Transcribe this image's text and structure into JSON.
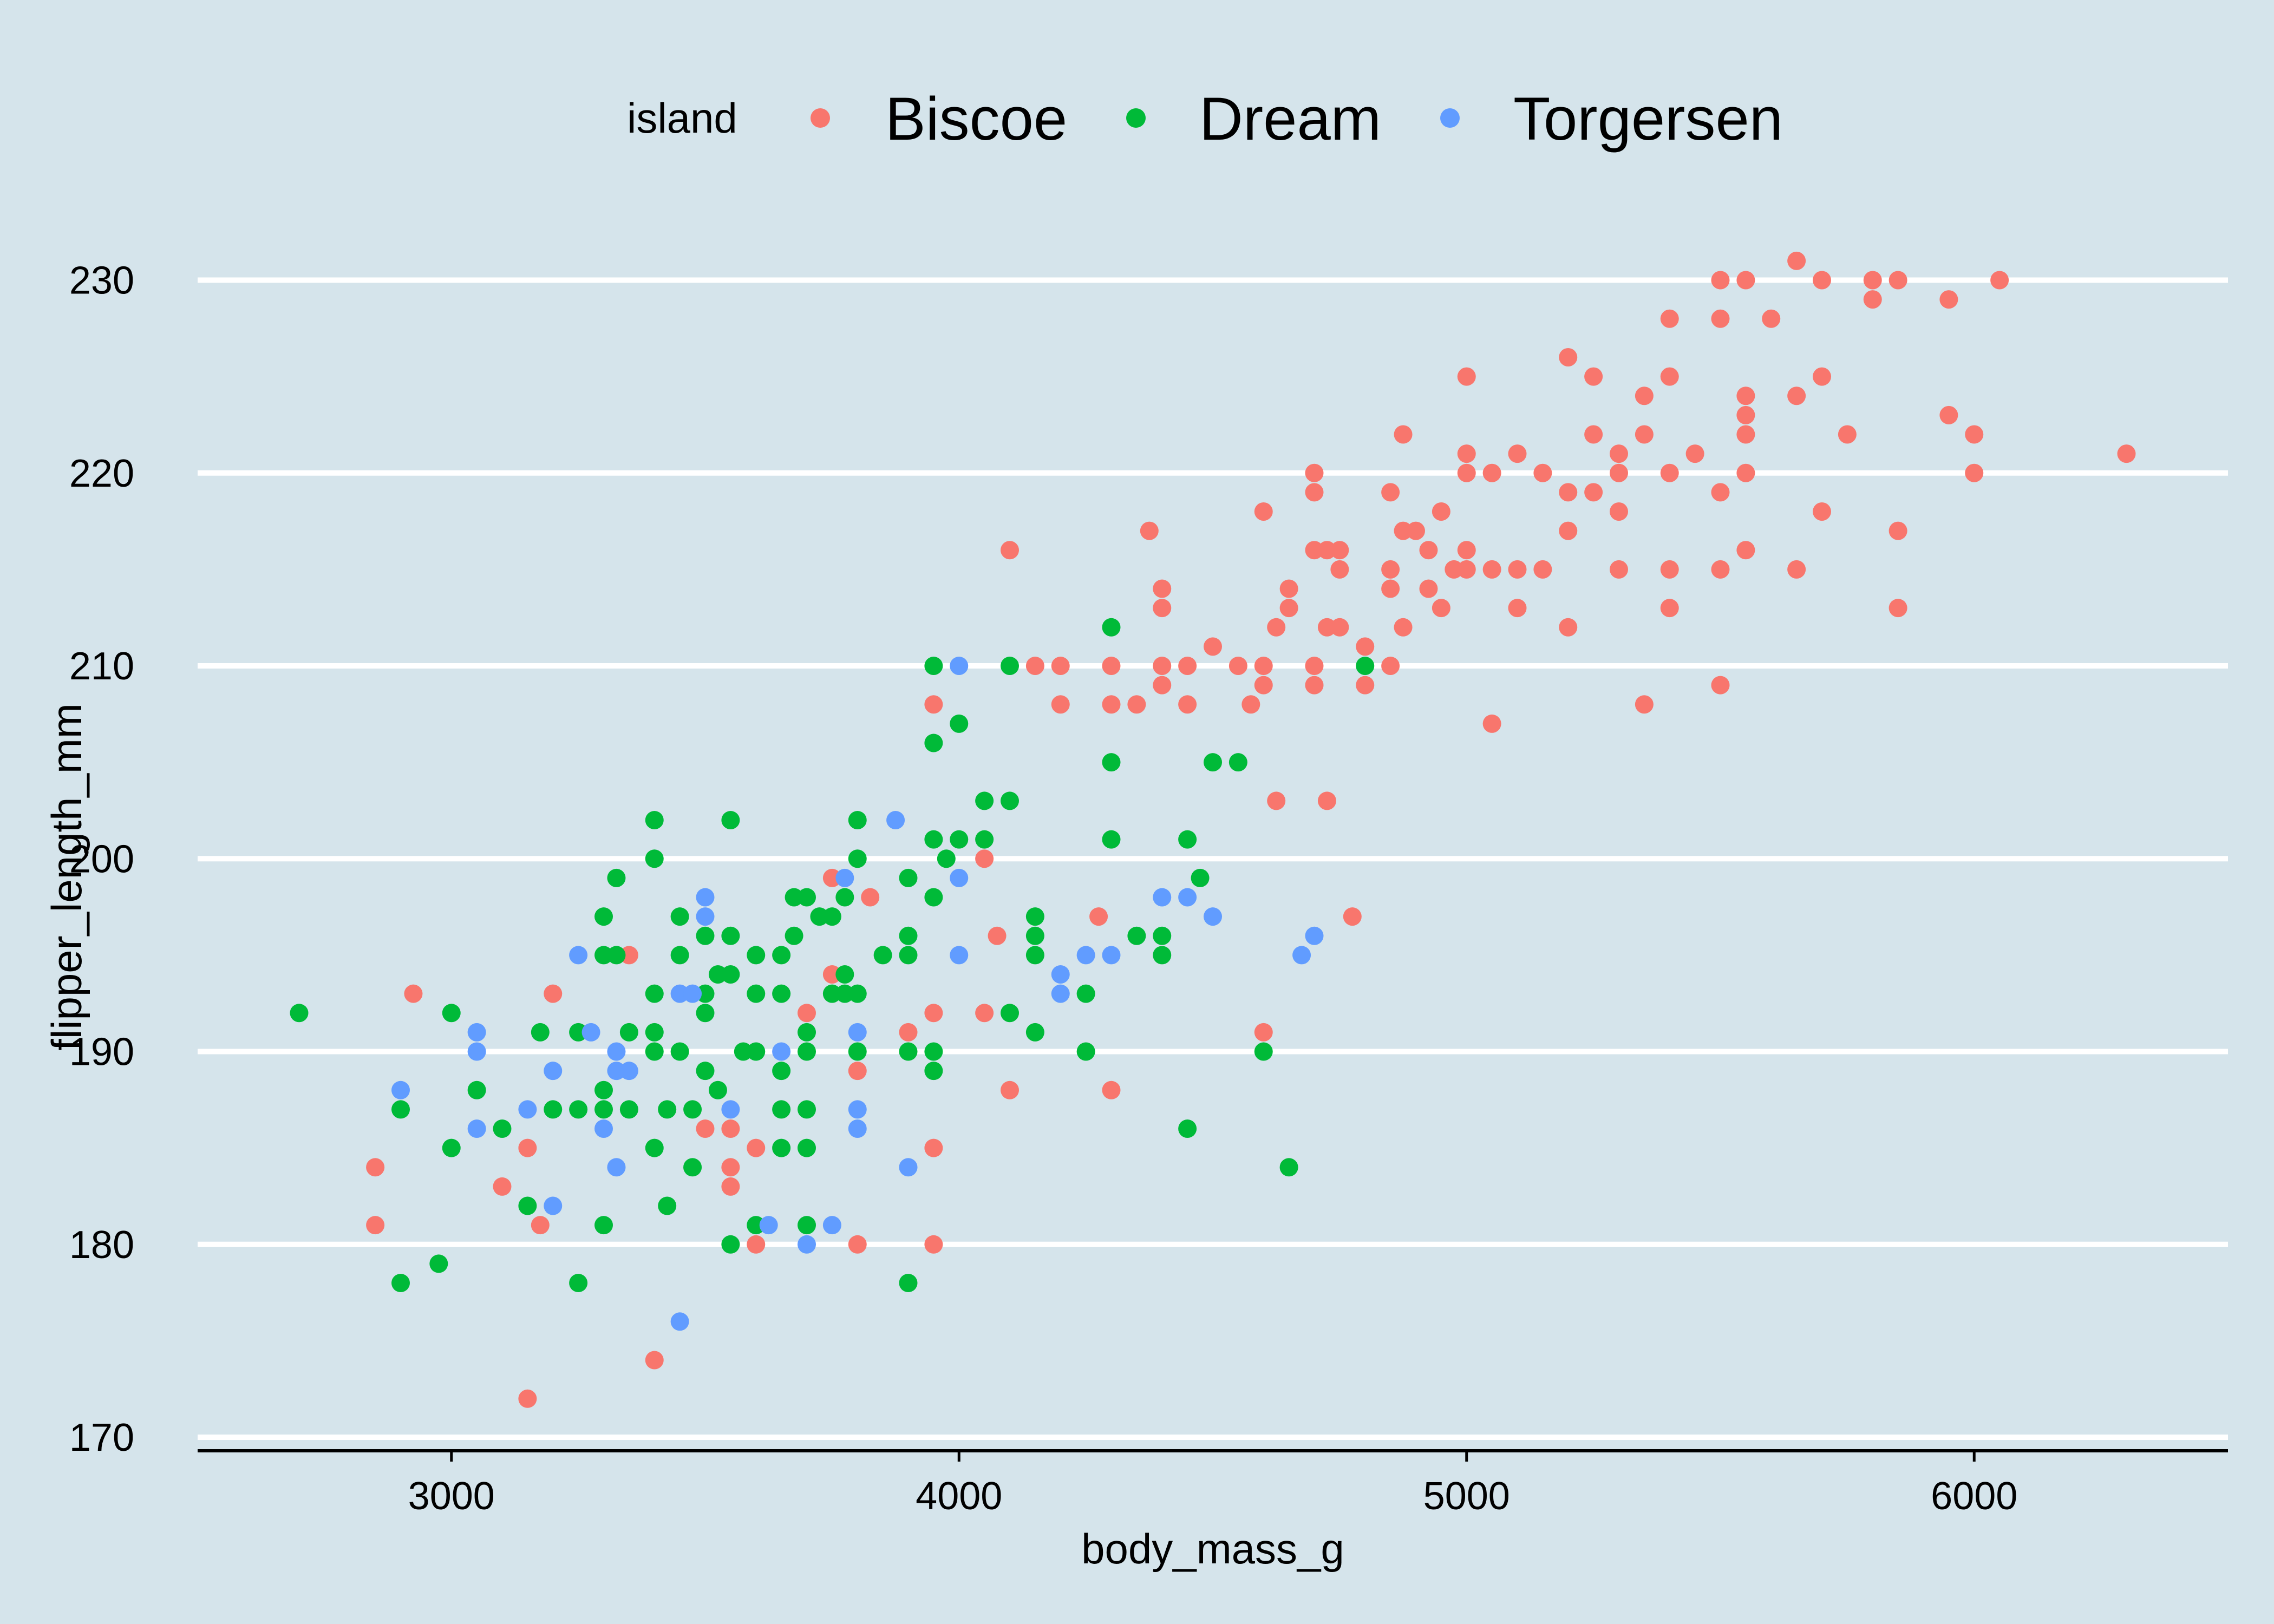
{
  "chart_data": {
    "type": "scatter",
    "xlabel": "body_mass_g",
    "ylabel": "flipper_length_mm",
    "xlim": [
      2500,
      6500
    ],
    "ylim": [
      169.3,
      234
    ],
    "xticks": [
      3000,
      4000,
      5000,
      6000
    ],
    "yticks": [
      170,
      180,
      190,
      200,
      210,
      220,
      230
    ],
    "grid": "horizontal",
    "legend": {
      "title": "island",
      "position": "top"
    },
    "series": [
      {
        "name": "Biscoe",
        "color": "#f8766d",
        "points": [
          [
            3150,
            172
          ],
          [
            2850,
            181
          ],
          [
            2850,
            184
          ],
          [
            2925,
            193
          ],
          [
            3100,
            183
          ],
          [
            3150,
            185
          ],
          [
            3175,
            181
          ],
          [
            3200,
            193
          ],
          [
            3350,
            195
          ],
          [
            3400,
            174
          ],
          [
            3500,
            186
          ],
          [
            3550,
            184
          ],
          [
            3550,
            183
          ],
          [
            3550,
            186
          ],
          [
            3600,
            185
          ],
          [
            3600,
            180
          ],
          [
            3700,
            192
          ],
          [
            3750,
            199
          ],
          [
            3750,
            194
          ],
          [
            3800,
            180
          ],
          [
            3800,
            189
          ],
          [
            3825,
            198
          ],
          [
            3900,
            191
          ],
          [
            3950,
            192
          ],
          [
            3950,
            185
          ],
          [
            3950,
            180
          ],
          [
            3950,
            208
          ],
          [
            4050,
            200
          ],
          [
            4050,
            192
          ],
          [
            4075,
            196
          ],
          [
            4100,
            188
          ],
          [
            4100,
            216
          ],
          [
            4150,
            210
          ],
          [
            4200,
            210
          ],
          [
            4200,
            208
          ],
          [
            4275,
            197
          ],
          [
            4300,
            210
          ],
          [
            4300,
            208
          ],
          [
            4300,
            188
          ],
          [
            4350,
            208
          ],
          [
            4375,
            217
          ],
          [
            4400,
            214
          ],
          [
            4400,
            213
          ],
          [
            4400,
            210
          ],
          [
            4400,
            209
          ],
          [
            4450,
            210
          ],
          [
            4450,
            208
          ],
          [
            4500,
            211
          ],
          [
            4550,
            210
          ],
          [
            4575,
            208
          ],
          [
            4600,
            218
          ],
          [
            4600,
            210
          ],
          [
            4600,
            209
          ],
          [
            4600,
            191
          ],
          [
            4625,
            212
          ],
          [
            4625,
            203
          ],
          [
            4650,
            214
          ],
          [
            4650,
            213
          ],
          [
            4700,
            220
          ],
          [
            4700,
            219
          ],
          [
            4700,
            216
          ],
          [
            4700,
            210
          ],
          [
            4700,
            209
          ],
          [
            4725,
            216
          ],
          [
            4725,
            212
          ],
          [
            4725,
            203
          ],
          [
            4750,
            216
          ],
          [
            4750,
            215
          ],
          [
            4750,
            212
          ],
          [
            4775,
            197
          ],
          [
            4800,
            211
          ],
          [
            4800,
            209
          ],
          [
            4850,
            219
          ],
          [
            4850,
            215
          ],
          [
            4850,
            214
          ],
          [
            4850,
            210
          ],
          [
            4875,
            222
          ],
          [
            4875,
            217
          ],
          [
            4875,
            212
          ],
          [
            4900,
            217
          ],
          [
            4925,
            216
          ],
          [
            4925,
            214
          ],
          [
            4950,
            218
          ],
          [
            4950,
            213
          ],
          [
            4975,
            215
          ],
          [
            5000,
            225
          ],
          [
            5000,
            221
          ],
          [
            5000,
            220
          ],
          [
            5000,
            216
          ],
          [
            5000,
            215
          ],
          [
            5050,
            220
          ],
          [
            5050,
            215
          ],
          [
            5050,
            207
          ],
          [
            5100,
            221
          ],
          [
            5100,
            215
          ],
          [
            5100,
            213
          ],
          [
            5150,
            220
          ],
          [
            5150,
            215
          ],
          [
            5200,
            226
          ],
          [
            5200,
            219
          ],
          [
            5200,
            217
          ],
          [
            5200,
            212
          ],
          [
            5250,
            225
          ],
          [
            5250,
            222
          ],
          [
            5250,
            219
          ],
          [
            5300,
            221
          ],
          [
            5300,
            220
          ],
          [
            5300,
            218
          ],
          [
            5300,
            215
          ],
          [
            5350,
            224
          ],
          [
            5350,
            222
          ],
          [
            5350,
            208
          ],
          [
            5400,
            228
          ],
          [
            5400,
            225
          ],
          [
            5400,
            220
          ],
          [
            5400,
            215
          ],
          [
            5400,
            213
          ],
          [
            5450,
            221
          ],
          [
            5500,
            230
          ],
          [
            5500,
            228
          ],
          [
            5500,
            219
          ],
          [
            5500,
            215
          ],
          [
            5500,
            209
          ],
          [
            5550,
            230
          ],
          [
            5550,
            224
          ],
          [
            5550,
            223
          ],
          [
            5550,
            222
          ],
          [
            5550,
            220
          ],
          [
            5550,
            216
          ],
          [
            5600,
            228
          ],
          [
            5650,
            231
          ],
          [
            5650,
            224
          ],
          [
            5650,
            215
          ],
          [
            5700,
            230
          ],
          [
            5700,
            225
          ],
          [
            5700,
            218
          ],
          [
            5750,
            222
          ],
          [
            5800,
            230
          ],
          [
            5800,
            229
          ],
          [
            5850,
            230
          ],
          [
            5850,
            217
          ],
          [
            5850,
            213
          ],
          [
            5950,
            229
          ],
          [
            5950,
            223
          ],
          [
            6000,
            222
          ],
          [
            6000,
            220
          ],
          [
            6050,
            230
          ],
          [
            6300,
            221
          ]
        ]
      },
      {
        "name": "Dream",
        "color": "#00ba38",
        "points": [
          [
            2700,
            192
          ],
          [
            2900,
            187
          ],
          [
            2900,
            178
          ],
          [
            2975,
            179
          ],
          [
            3000,
            192
          ],
          [
            3000,
            185
          ],
          [
            3050,
            188
          ],
          [
            3100,
            186
          ],
          [
            3150,
            182
          ],
          [
            3175,
            191
          ],
          [
            3200,
            187
          ],
          [
            3250,
            191
          ],
          [
            3250,
            187
          ],
          [
            3250,
            178
          ],
          [
            3300,
            197
          ],
          [
            3300,
            195
          ],
          [
            3300,
            188
          ],
          [
            3300,
            187
          ],
          [
            3300,
            181
          ],
          [
            3325,
            199
          ],
          [
            3325,
            195
          ],
          [
            3350,
            191
          ],
          [
            3350,
            187
          ],
          [
            3400,
            202
          ],
          [
            3400,
            200
          ],
          [
            3400,
            193
          ],
          [
            3400,
            191
          ],
          [
            3400,
            190
          ],
          [
            3400,
            185
          ],
          [
            3425,
            187
          ],
          [
            3425,
            182
          ],
          [
            3450,
            197
          ],
          [
            3450,
            195
          ],
          [
            3450,
            190
          ],
          [
            3475,
            187
          ],
          [
            3475,
            184
          ],
          [
            3500,
            196
          ],
          [
            3500,
            193
          ],
          [
            3500,
            192
          ],
          [
            3500,
            189
          ],
          [
            3525,
            194
          ],
          [
            3525,
            188
          ],
          [
            3550,
            202
          ],
          [
            3550,
            196
          ],
          [
            3550,
            194
          ],
          [
            3550,
            180
          ],
          [
            3575,
            190
          ],
          [
            3600,
            195
          ],
          [
            3600,
            193
          ],
          [
            3600,
            190
          ],
          [
            3600,
            181
          ],
          [
            3650,
            195
          ],
          [
            3650,
            193
          ],
          [
            3650,
            189
          ],
          [
            3650,
            187
          ],
          [
            3650,
            185
          ],
          [
            3675,
            198
          ],
          [
            3675,
            196
          ],
          [
            3700,
            198
          ],
          [
            3700,
            191
          ],
          [
            3700,
            190
          ],
          [
            3700,
            187
          ],
          [
            3700,
            185
          ],
          [
            3700,
            181
          ],
          [
            3725,
            197
          ],
          [
            3750,
            197
          ],
          [
            3750,
            193
          ],
          [
            3775,
            198
          ],
          [
            3775,
            194
          ],
          [
            3775,
            193
          ],
          [
            3800,
            202
          ],
          [
            3800,
            200
          ],
          [
            3800,
            193
          ],
          [
            3800,
            190
          ],
          [
            3850,
            195
          ],
          [
            3900,
            199
          ],
          [
            3900,
            196
          ],
          [
            3900,
            195
          ],
          [
            3900,
            190
          ],
          [
            3900,
            178
          ],
          [
            3950,
            210
          ],
          [
            3950,
            206
          ],
          [
            3950,
            201
          ],
          [
            3950,
            198
          ],
          [
            3950,
            190
          ],
          [
            3950,
            189
          ],
          [
            3975,
            200
          ],
          [
            4000,
            207
          ],
          [
            4000,
            201
          ],
          [
            4050,
            203
          ],
          [
            4050,
            201
          ],
          [
            4100,
            210
          ],
          [
            4100,
            203
          ],
          [
            4100,
            192
          ],
          [
            4150,
            197
          ],
          [
            4150,
            196
          ],
          [
            4150,
            195
          ],
          [
            4150,
            191
          ],
          [
            4250,
            193
          ],
          [
            4250,
            190
          ],
          [
            4300,
            212
          ],
          [
            4300,
            205
          ],
          [
            4300,
            201
          ],
          [
            4350,
            196
          ],
          [
            4400,
            196
          ],
          [
            4400,
            195
          ],
          [
            4450,
            201
          ],
          [
            4450,
            186
          ],
          [
            4475,
            199
          ],
          [
            4500,
            205
          ],
          [
            4550,
            205
          ],
          [
            4600,
            190
          ],
          [
            4650,
            184
          ],
          [
            4800,
            210
          ]
        ]
      },
      {
        "name": "Torgersen",
        "color": "#619cff",
        "points": [
          [
            2900,
            188
          ],
          [
            3050,
            191
          ],
          [
            3050,
            190
          ],
          [
            3050,
            186
          ],
          [
            3150,
            187
          ],
          [
            3200,
            189
          ],
          [
            3200,
            182
          ],
          [
            3250,
            195
          ],
          [
            3275,
            191
          ],
          [
            3300,
            186
          ],
          [
            3325,
            190
          ],
          [
            3325,
            189
          ],
          [
            3325,
            184
          ],
          [
            3350,
            189
          ],
          [
            3450,
            193
          ],
          [
            3450,
            176
          ],
          [
            3475,
            193
          ],
          [
            3500,
            198
          ],
          [
            3500,
            197
          ],
          [
            3550,
            187
          ],
          [
            3625,
            181
          ],
          [
            3650,
            190
          ],
          [
            3700,
            180
          ],
          [
            3750,
            181
          ],
          [
            3775,
            199
          ],
          [
            3800,
            191
          ],
          [
            3800,
            187
          ],
          [
            3800,
            186
          ],
          [
            3875,
            202
          ],
          [
            3900,
            184
          ],
          [
            4000,
            210
          ],
          [
            4000,
            199
          ],
          [
            4000,
            195
          ],
          [
            4200,
            194
          ],
          [
            4200,
            193
          ],
          [
            4250,
            195
          ],
          [
            4300,
            195
          ],
          [
            4400,
            198
          ],
          [
            4450,
            198
          ],
          [
            4500,
            197
          ],
          [
            4675,
            195
          ],
          [
            4700,
            196
          ]
        ]
      }
    ]
  }
}
